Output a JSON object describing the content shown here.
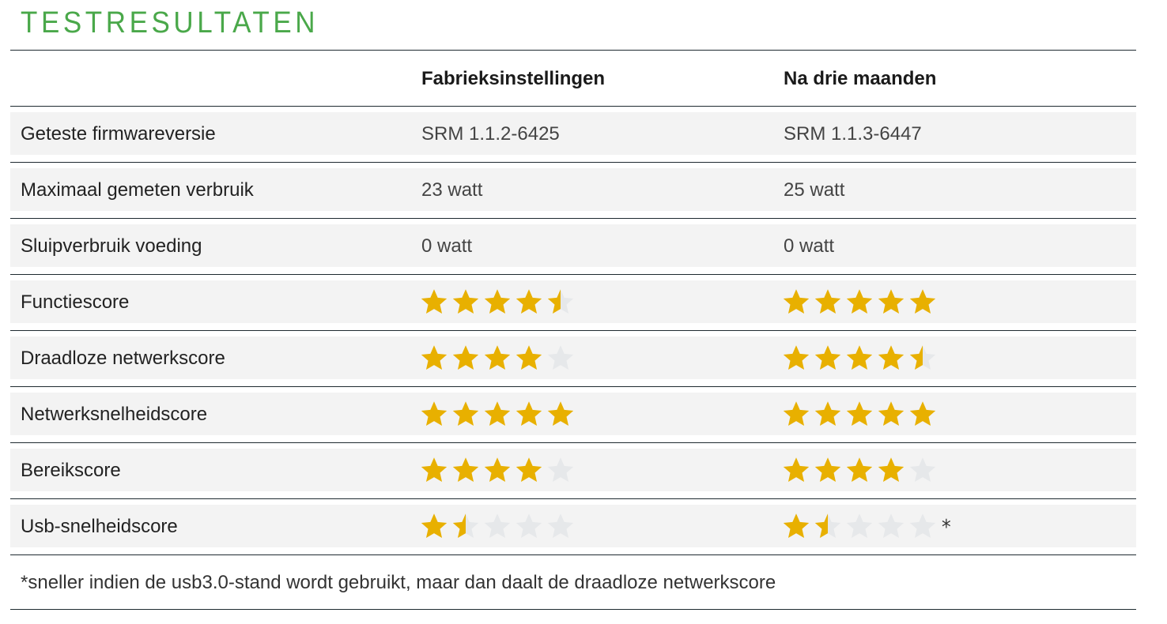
{
  "title": "TESTRESULTATEN",
  "colors": {
    "accent": "#4aa84a",
    "star_filled": "#e8b000",
    "star_empty": "#e6e8ea"
  },
  "columns": [
    "",
    "Fabrieksinstellingen",
    "Na drie maanden"
  ],
  "rows": [
    {
      "label": "Geteste firmwareversie",
      "values": [
        "SRM 1.1.2-6425",
        "SRM 1.1.3-6447"
      ]
    },
    {
      "label": "Maximaal gemeten verbruik",
      "values": [
        "23 watt",
        "25 watt"
      ]
    },
    {
      "label": "Sluipverbruik voeding",
      "values": [
        "0 watt",
        "0 watt"
      ]
    },
    {
      "label": "Functiescore",
      "ratings": [
        4.5,
        5
      ],
      "max": 5
    },
    {
      "label": "Draadloze netwerkscore",
      "ratings": [
        4,
        4.5
      ],
      "max": 5
    },
    {
      "label": "Netwerksnelheidscore",
      "ratings": [
        5,
        5
      ],
      "max": 5
    },
    {
      "label": "Bereikscore",
      "ratings": [
        4,
        4
      ],
      "max": 5
    },
    {
      "label": "Usb-snelheidscore",
      "ratings": [
        1.5,
        1.5
      ],
      "max": 5,
      "marks": [
        "",
        "*"
      ]
    }
  ],
  "footnote": "*sneller indien de usb3.0-stand wordt gebruikt, maar dan daalt de draadloze netwerkscore"
}
